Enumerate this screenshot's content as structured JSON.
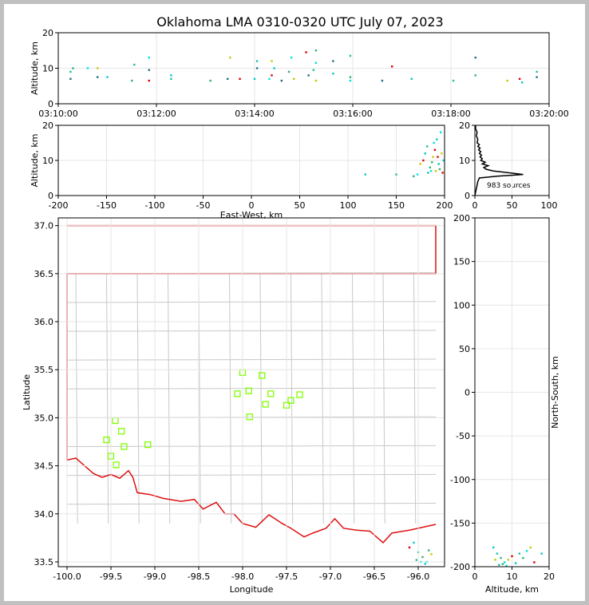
{
  "figure": {
    "title": "Oklahoma LMA 0310-0320 UTC July 07, 2023",
    "source_count_label": "983 sources",
    "colors": {
      "background": "#c0c0c0",
      "panel": "#ffffff",
      "state_border": "#dd1111",
      "county": "#c8c8c8",
      "station": "#7fff00",
      "grid": "#e6e6e6"
    }
  },
  "chart_data": [
    {
      "id": "time_altitude",
      "type": "scatter",
      "xlabel": "",
      "ylabel": "Altitude, km",
      "x_tick_labels": [
        "03:10:00",
        "03:12:00",
        "03:14:00",
        "03:16:00",
        "03:18:00",
        "03:20:00"
      ],
      "xlim_minutes": [
        0,
        10
      ],
      "ylim": [
        0,
        20
      ],
      "y_ticks": [
        0,
        10,
        20
      ],
      "points": [
        [
          0.25,
          7
        ],
        [
          0.25,
          9
        ],
        [
          0.3,
          10
        ],
        [
          0.6,
          10
        ],
        [
          0.8,
          10
        ],
        [
          0.8,
          7.5
        ],
        [
          1.0,
          7.5
        ],
        [
          1.55,
          11
        ],
        [
          1.5,
          6.5
        ],
        [
          1.85,
          13
        ],
        [
          1.85,
          9.5
        ],
        [
          1.85,
          6.5
        ],
        [
          2.3,
          8
        ],
        [
          2.3,
          7
        ],
        [
          3.1,
          6.5
        ],
        [
          3.45,
          7
        ],
        [
          3.5,
          13
        ],
        [
          3.7,
          7
        ],
        [
          4.0,
          7
        ],
        [
          4.05,
          12
        ],
        [
          4.05,
          10
        ],
        [
          4.3,
          7
        ],
        [
          4.35,
          12
        ],
        [
          4.35,
          8
        ],
        [
          4.4,
          10
        ],
        [
          4.55,
          6.5
        ],
        [
          4.7,
          9
        ],
        [
          4.75,
          13
        ],
        [
          4.8,
          7
        ],
        [
          5.05,
          14.5
        ],
        [
          5.1,
          8
        ],
        [
          5.2,
          9.5
        ],
        [
          5.25,
          15
        ],
        [
          5.25,
          11.5
        ],
        [
          5.25,
          6.5
        ],
        [
          5.6,
          12
        ],
        [
          5.6,
          8.5
        ],
        [
          5.95,
          13.5
        ],
        [
          5.95,
          7.5
        ],
        [
          5.95,
          6.5
        ],
        [
          6.6,
          6.5
        ],
        [
          6.8,
          10.5
        ],
        [
          7.2,
          7
        ],
        [
          8.05,
          6.5
        ],
        [
          8.5,
          8
        ],
        [
          8.5,
          13
        ],
        [
          9.15,
          6.5
        ],
        [
          9.4,
          7
        ],
        [
          9.45,
          6
        ],
        [
          9.75,
          9
        ],
        [
          9.75,
          7.5
        ]
      ]
    },
    {
      "id": "ew_altitude",
      "type": "scatter",
      "xlabel": "East-West, km",
      "ylabel": "Altitude, km",
      "xlim": [
        -200,
        200
      ],
      "ylim": [
        0,
        20
      ],
      "x_ticks": [
        -200,
        -150,
        -100,
        -50,
        0,
        50,
        100,
        150,
        200
      ],
      "y_ticks": [
        0,
        10,
        20
      ],
      "points": [
        [
          118,
          6
        ],
        [
          150,
          6
        ],
        [
          168,
          5.5
        ],
        [
          172,
          6
        ],
        [
          175,
          9
        ],
        [
          178,
          10
        ],
        [
          180,
          12
        ],
        [
          182,
          14
        ],
        [
          185,
          8
        ],
        [
          186,
          7
        ],
        [
          188,
          11
        ],
        [
          190,
          13
        ],
        [
          192,
          16
        ],
        [
          194,
          9
        ],
        [
          195,
          7.5
        ],
        [
          196,
          18
        ],
        [
          197,
          12
        ],
        [
          198,
          6.5
        ],
        [
          199,
          10
        ],
        [
          183,
          6.5
        ],
        [
          187,
          9.5
        ],
        [
          189,
          15
        ],
        [
          191,
          7
        ],
        [
          193,
          11
        ]
      ]
    },
    {
      "id": "altitude_histogram",
      "type": "line",
      "xlabel": "",
      "ylabel": "",
      "xlim": [
        0,
        100
      ],
      "ylim": [
        0,
        20
      ],
      "x_ticks": [
        0,
        50,
        100
      ],
      "y_ticks": [
        0,
        10,
        20
      ],
      "alt": [
        0,
        1,
        2,
        3,
        4,
        5,
        5.5,
        6,
        6.5,
        7,
        7.5,
        8,
        8.5,
        9,
        9.5,
        10,
        10.5,
        11,
        11.5,
        12,
        12.5,
        13,
        13.5,
        14,
        14.5,
        15,
        16,
        17,
        18,
        19,
        20
      ],
      "count": [
        0,
        1,
        2,
        3,
        4,
        6,
        30,
        65,
        45,
        25,
        15,
        12,
        18,
        10,
        14,
        8,
        10,
        7,
        9,
        6,
        8,
        5,
        7,
        4,
        6,
        3,
        4,
        2,
        3,
        1,
        1
      ]
    },
    {
      "id": "plan_view",
      "type": "scatter",
      "xlabel": "Longitude",
      "ylabel": "Latitude",
      "xlim": [
        -100.1,
        -95.7
      ],
      "ylim": [
        33.45,
        37.08
      ],
      "x_ticks": [
        -100.0,
        -99.5,
        -99.0,
        -98.5,
        -98.0,
        -97.5,
        -97.0,
        -96.5,
        -96.0
      ],
      "x_tick_labels": [
        "-100.0",
        "-99.5",
        "-99.0",
        "-98.5",
        "-98.0",
        "-97.5",
        "-97.0",
        "-96.5",
        "-96.0"
      ],
      "y_ticks": [
        33.5,
        34.0,
        34.5,
        35.0,
        35.5,
        36.0,
        36.5,
        37.0
      ],
      "y_tick_labels": [
        "33.5",
        "34.0",
        "34.5",
        "35.0",
        "35.5",
        "36.0",
        "36.5",
        "37.0"
      ],
      "stations": [
        [
          -99.45,
          34.97
        ],
        [
          -99.38,
          34.86
        ],
        [
          -99.55,
          34.77
        ],
        [
          -99.35,
          34.7
        ],
        [
          -99.08,
          34.72
        ],
        [
          -99.5,
          34.6
        ],
        [
          -99.44,
          34.51
        ],
        [
          -98.0,
          35.47
        ],
        [
          -97.78,
          35.44
        ],
        [
          -98.06,
          35.25
        ],
        [
          -97.93,
          35.28
        ],
        [
          -97.68,
          35.25
        ],
        [
          -97.35,
          35.24
        ],
        [
          -97.45,
          35.18
        ],
        [
          -97.74,
          35.14
        ],
        [
          -97.5,
          35.13
        ],
        [
          -97.92,
          35.01
        ]
      ],
      "state_border": [
        [
          -100.0,
          37.0
        ],
        [
          -95.8,
          37.0
        ],
        [
          -95.8,
          36.5
        ],
        [
          -100.0,
          36.5
        ],
        [
          -100.0,
          34.56
        ],
        [
          -99.9,
          34.58
        ],
        [
          -99.8,
          34.5
        ],
        [
          -99.7,
          34.42
        ],
        [
          -99.6,
          34.38
        ],
        [
          -99.5,
          34.41
        ],
        [
          -99.4,
          34.37
        ],
        [
          -99.3,
          34.45
        ],
        [
          -99.25,
          34.38
        ],
        [
          -99.2,
          34.22
        ],
        [
          -99.05,
          34.2
        ],
        [
          -98.9,
          34.16
        ],
        [
          -98.7,
          34.13
        ],
        [
          -98.55,
          34.15
        ],
        [
          -98.45,
          34.05
        ],
        [
          -98.3,
          34.12
        ],
        [
          -98.2,
          34.0
        ],
        [
          -98.1,
          34.0
        ],
        [
          -98.0,
          33.9
        ],
        [
          -97.85,
          33.86
        ],
        [
          -97.7,
          33.99
        ],
        [
          -97.55,
          33.9
        ],
        [
          -97.45,
          33.85
        ],
        [
          -97.3,
          33.76
        ],
        [
          -97.2,
          33.8
        ],
        [
          -97.05,
          33.85
        ],
        [
          -96.95,
          33.95
        ],
        [
          -96.85,
          33.85
        ],
        [
          -96.7,
          33.83
        ],
        [
          -96.55,
          33.82
        ],
        [
          -96.4,
          33.7
        ],
        [
          -96.3,
          33.8
        ],
        [
          -96.1,
          33.83
        ],
        [
          -95.95,
          33.86
        ],
        [
          -95.8,
          33.89
        ]
      ]
    },
    {
      "id": "altitude_ns",
      "type": "scatter",
      "xlabel": "Altitude, km",
      "ylabel": "North-South, km",
      "xlim": [
        0,
        20
      ],
      "ylim": [
        -200,
        200
      ],
      "x_ticks": [
        0,
        10,
        20
      ],
      "y_ticks": [
        -200,
        -150,
        -100,
        -50,
        0,
        50,
        100,
        150,
        200
      ],
      "points": [
        [
          5,
          -178
        ],
        [
          6,
          -185
        ],
        [
          7,
          -190
        ],
        [
          8,
          -195
        ],
        [
          9,
          -192
        ],
        [
          10,
          -188
        ],
        [
          11,
          -196
        ],
        [
          12,
          -185
        ],
        [
          13,
          -190
        ],
        [
          14,
          -182
        ],
        [
          15,
          -178
        ],
        [
          16,
          -195
        ],
        [
          18,
          -185
        ],
        [
          6.5,
          -198
        ],
        [
          7.5,
          -197
        ],
        [
          8.5,
          -199
        ],
        [
          5.5,
          -192
        ]
      ]
    }
  ]
}
